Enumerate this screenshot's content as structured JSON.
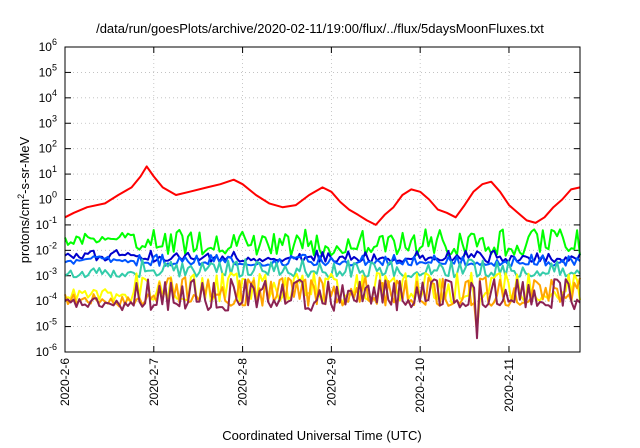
{
  "chart_data": {
    "type": "line",
    "title": "/data/run/goesPlots/archive/2020-02-11/19:00/flux/../flux/5daysMoonFluxes.txt",
    "xlabel": "Coordinated Universal Time (UTC)",
    "ylabel": {
      "prefix": "protons/cm",
      "sup": "2",
      "suffix": "-s-sr-MeV"
    },
    "yscale": "log",
    "ylim_exp": [
      -6,
      6
    ],
    "yticks": [
      {
        "base": "10",
        "exp": "6"
      },
      {
        "base": "10",
        "exp": "5"
      },
      {
        "base": "10",
        "exp": "4"
      },
      {
        "base": "10",
        "exp": "3"
      },
      {
        "base": "10",
        "exp": "2"
      },
      {
        "base": "10",
        "exp": "1"
      },
      {
        "base": "10",
        "exp": "0"
      },
      {
        "base": "10",
        "exp": "-1"
      },
      {
        "base": "10",
        "exp": "-2"
      },
      {
        "base": "10",
        "exp": "-3"
      },
      {
        "base": "10",
        "exp": "-4"
      },
      {
        "base": "10",
        "exp": "-5"
      },
      {
        "base": "10",
        "exp": "-6"
      }
    ],
    "xlim_days": [
      0,
      5.8
    ],
    "xticks": [
      "2020-2-6",
      "2020-2-7",
      "2020-2-8",
      "2020-2-9",
      "2020-2-10",
      "2020-2-11"
    ],
    "grid": true,
    "series": [
      {
        "color": "#ff0000",
        "points": [
          [
            0,
            0.2
          ],
          [
            0.1,
            0.3
          ],
          [
            0.25,
            0.5
          ],
          [
            0.45,
            0.7
          ],
          [
            0.6,
            1.5
          ],
          [
            0.75,
            3
          ],
          [
            0.85,
            8
          ],
          [
            0.92,
            20
          ],
          [
            1.0,
            8
          ],
          [
            1.1,
            3
          ],
          [
            1.25,
            1.5
          ],
          [
            1.4,
            2
          ],
          [
            1.6,
            3
          ],
          [
            1.75,
            4
          ],
          [
            1.9,
            6
          ],
          [
            2.0,
            4
          ],
          [
            2.15,
            1.5
          ],
          [
            2.3,
            0.7
          ],
          [
            2.45,
            0.5
          ],
          [
            2.6,
            0.6
          ],
          [
            2.75,
            1.5
          ],
          [
            2.9,
            3
          ],
          [
            3.0,
            2
          ],
          [
            3.1,
            0.8
          ],
          [
            3.2,
            0.4
          ],
          [
            3.3,
            0.25
          ],
          [
            3.4,
            0.15
          ],
          [
            3.5,
            0.1
          ],
          [
            3.6,
            0.25
          ],
          [
            3.7,
            0.5
          ],
          [
            3.8,
            1.5
          ],
          [
            3.9,
            2.5
          ],
          [
            4.0,
            2
          ],
          [
            4.1,
            1
          ],
          [
            4.2,
            0.4
          ],
          [
            4.3,
            0.3
          ],
          [
            4.4,
            0.2
          ],
          [
            4.5,
            0.6
          ],
          [
            4.6,
            2
          ],
          [
            4.7,
            4
          ],
          [
            4.8,
            5
          ],
          [
            4.9,
            2
          ],
          [
            5.0,
            0.6
          ],
          [
            5.1,
            0.3
          ],
          [
            5.2,
            0.15
          ],
          [
            5.3,
            0.12
          ],
          [
            5.4,
            0.2
          ],
          [
            5.5,
            0.5
          ],
          [
            5.6,
            1
          ],
          [
            5.7,
            2.5
          ],
          [
            5.8,
            3
          ]
        ]
      },
      {
        "color": "#00ff00",
        "base": 0.01,
        "spread": 0.9,
        "spikes": 0.045,
        "phase": 1,
        "steps": [
          [
            0.2,
            0.025
          ],
          [
            0.3,
            0.04
          ],
          [
            0.5,
            0.02
          ],
          [
            0.8,
            0.03
          ]
        ]
      },
      {
        "color": "#0000cc",
        "base": 0.0045,
        "spread": 0.45,
        "spikes": 0.0065,
        "phase": 2,
        "steps": [
          [
            0.2,
            0.006
          ],
          [
            0.35,
            0.008
          ],
          [
            0.5,
            0.005
          ],
          [
            0.8,
            0.008
          ]
        ]
      },
      {
        "color": "#0055ff",
        "base": 0.003,
        "spread": 0.35,
        "spikes": 0.0045,
        "phase": 3,
        "steps": [
          [
            0.2,
            0.0035
          ],
          [
            0.5,
            0.005
          ],
          [
            0.8,
            0.004
          ]
        ]
      },
      {
        "color": "#33ccaa",
        "base": 0.0012,
        "spread": 0.55,
        "spikes": 0.003,
        "phase": 4,
        "steps": [
          [
            0.3,
            0.0012
          ],
          [
            0.5,
            0.0015
          ],
          [
            0.8,
            0.0012
          ]
        ]
      },
      {
        "color": "#ffff00",
        "base": 0.00015,
        "spread": 0.9,
        "spikes": 0.0009,
        "phase": 5,
        "steps": [
          [
            0.5,
            0.00018
          ],
          [
            0.8,
            0.00015
          ]
        ]
      },
      {
        "color": "#ffa500",
        "base": 0.00011,
        "spread": 0.9,
        "spikes": 0.0006,
        "phase": 6,
        "steps": [
          [
            0.5,
            0.00012
          ],
          [
            0.8,
            0.0001
          ]
        ]
      },
      {
        "color": "#8b2252",
        "base": 7e-05,
        "spread": 0.9,
        "spikes": 0.0005,
        "phase": 7,
        "steps": [
          [
            0.5,
            8e-05
          ],
          [
            0.8,
            7e-05
          ]
        ]
      }
    ]
  }
}
